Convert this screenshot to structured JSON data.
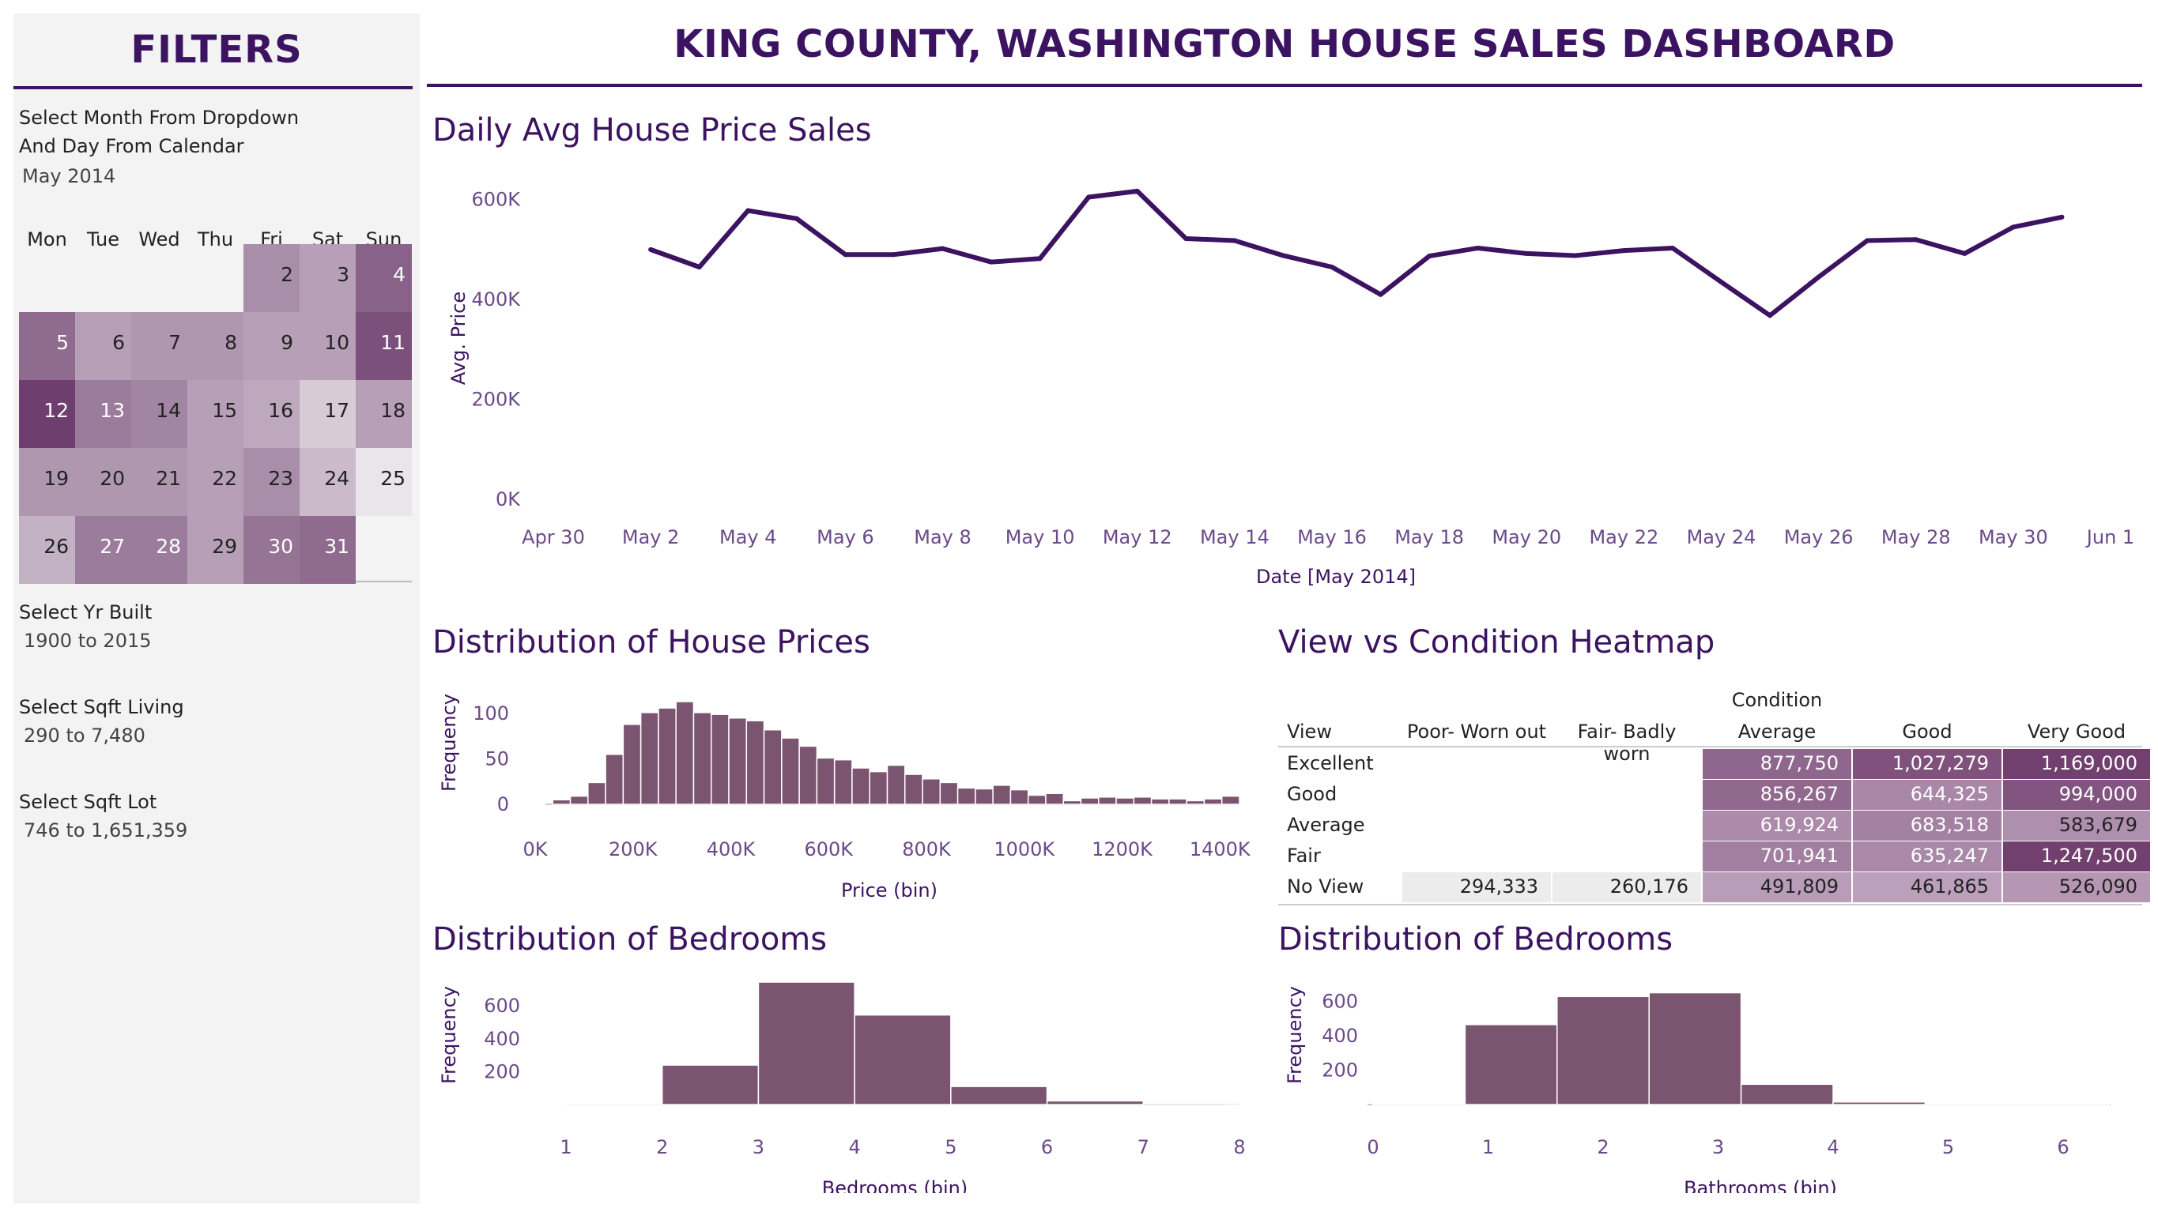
{
  "filters": {
    "title": "FILTERS",
    "month_label_1": "Select Month From Dropdown",
    "month_label_2": "And Day From Calendar",
    "month_value": "May 2014",
    "weekdays": [
      "Mon",
      "Tue",
      "Wed",
      "Thu",
      "Fri",
      "Sat",
      "Sun"
    ],
    "calendar": [
      {
        "day": "2",
        "level": 0.55
      },
      {
        "day": "3",
        "level": 0.45
      },
      {
        "day": "4",
        "level": 0.8
      },
      {
        "day": "5",
        "level": 0.75
      },
      {
        "day": "6",
        "level": 0.45
      },
      {
        "day": "7",
        "level": 0.5
      },
      {
        "day": "8",
        "level": 0.5
      },
      {
        "day": "9",
        "level": 0.45
      },
      {
        "day": "10",
        "level": 0.45
      },
      {
        "day": "11",
        "level": 0.9
      },
      {
        "day": "12",
        "level": 1.0
      },
      {
        "day": "13",
        "level": 0.65
      },
      {
        "day": "14",
        "level": 0.6
      },
      {
        "day": "15",
        "level": 0.45
      },
      {
        "day": "16",
        "level": 0.4
      },
      {
        "day": "17",
        "level": 0.2
      },
      {
        "day": "18",
        "level": 0.45
      },
      {
        "day": "19",
        "level": 0.5
      },
      {
        "day": "20",
        "level": 0.5
      },
      {
        "day": "21",
        "level": 0.5
      },
      {
        "day": "22",
        "level": 0.45
      },
      {
        "day": "23",
        "level": 0.55
      },
      {
        "day": "24",
        "level": 0.3
      },
      {
        "day": "25",
        "level": 0.05
      },
      {
        "day": "26",
        "level": 0.35
      },
      {
        "day": "27",
        "level": 0.65
      },
      {
        "day": "28",
        "level": 0.65
      },
      {
        "day": "29",
        "level": 0.45
      },
      {
        "day": "30",
        "level": 0.7
      },
      {
        "day": "31",
        "level": 0.75
      }
    ],
    "yr_label": "Select Yr Built",
    "yr_value": "1900 to 2015",
    "sqft_living_label": "Select Sqft Living",
    "sqft_living_value": "290 to 7,480",
    "sqft_lot_label": "Select Sqft Lot",
    "sqft_lot_value": "746 to 1,651,359"
  },
  "header": {
    "title": "KING COUNTY, WASHINGTON HOUSE SALES DASHBOARD"
  },
  "colors": {
    "primary": "#3c1361",
    "bar": "#7b5570",
    "bar_edge": "#ffffff",
    "axis_text": "#6b4a8a"
  },
  "chart_data": [
    {
      "type": "line",
      "title": "Daily Avg House Price Sales",
      "xlabel": "Date [May 2014]",
      "ylabel": "Avg. Price",
      "x_ticks": [
        "Apr 30",
        "May 2",
        "May 4",
        "May 6",
        "May 8",
        "May 10",
        "May 12",
        "May 14",
        "May 16",
        "May 18",
        "May 20",
        "May 22",
        "May 24",
        "May 26",
        "May 28",
        "May 30",
        "Jun 1"
      ],
      "y_ticks": [
        "0K",
        "200K",
        "400K",
        "600K"
      ],
      "ylim": [
        0,
        620000
      ],
      "x": [
        2,
        3,
        4,
        5,
        6,
        7,
        8,
        9,
        10,
        11,
        12,
        13,
        14,
        15,
        16,
        17,
        18,
        19,
        20,
        21,
        22,
        23,
        24,
        25,
        26,
        27,
        28,
        29,
        30,
        31
      ],
      "values": [
        500000,
        465000,
        578000,
        562000,
        490000,
        490000,
        502000,
        475000,
        482000,
        605000,
        617000,
        522000,
        518000,
        488000,
        465000,
        410000,
        487000,
        503000,
        492000,
        488000,
        498000,
        503000,
        435000,
        368000,
        445000,
        518000,
        520000,
        492000,
        545000,
        565000
      ]
    },
    {
      "type": "bar",
      "title": "Distribution of House Prices",
      "xlabel": "Price (bin)",
      "ylabel": "Frequency",
      "x_ticks": [
        "0K",
        "200K",
        "400K",
        "600K",
        "800K",
        "1000K",
        "1200K",
        "1400K"
      ],
      "y_ticks": [
        "0",
        "50",
        "100"
      ],
      "ylim": [
        0,
        120
      ],
      "bin_width": 36000,
      "bin_starts": [
        36000,
        72000,
        108000,
        144000,
        180000,
        216000,
        252000,
        288000,
        324000,
        360000,
        396000,
        432000,
        468000,
        504000,
        540000,
        576000,
        612000,
        648000,
        684000,
        720000,
        756000,
        792000,
        828000,
        864000,
        900000,
        936000,
        972000,
        1008000,
        1044000,
        1080000,
        1116000,
        1152000,
        1188000,
        1224000,
        1260000,
        1296000,
        1332000,
        1368000,
        1404000
      ],
      "values": [
        5,
        9,
        24,
        55,
        88,
        101,
        106,
        113,
        101,
        99,
        95,
        92,
        82,
        73,
        64,
        51,
        49,
        40,
        36,
        43,
        33,
        28,
        24,
        18,
        17,
        21,
        16,
        10,
        12,
        4,
        7,
        8,
        7,
        8,
        6,
        6,
        4,
        6,
        9
      ]
    },
    {
      "type": "heatmap",
      "title": "View vs Condition Heatmap",
      "column_group": "Condition",
      "row_header": "View",
      "columns": [
        "Poor- Worn out",
        "Fair- Badly worn",
        "Average",
        "Good",
        "Very Good"
      ],
      "rows": [
        "Excellent",
        "Good",
        "Average",
        "Fair",
        "No View"
      ],
      "cells": [
        [
          "",
          "",
          "877,750",
          "1,027,279",
          "1,169,000"
        ],
        [
          "",
          "",
          "856,267",
          "644,325",
          "994,000"
        ],
        [
          "",
          "",
          "619,924",
          "683,518",
          "583,679"
        ],
        [
          "",
          "",
          "701,941",
          "635,247",
          "1,247,500"
        ],
        [
          "294,333",
          "260,176",
          "491,809",
          "461,865",
          "526,090"
        ]
      ],
      "values": [
        [
          null,
          null,
          877750,
          1027279,
          1169000
        ],
        [
          null,
          null,
          856267,
          644325,
          994000
        ],
        [
          null,
          null,
          619924,
          683518,
          583679
        ],
        [
          null,
          null,
          701941,
          635247,
          1247500
        ],
        [
          294333,
          260176,
          491809,
          461865,
          526090
        ]
      ]
    },
    {
      "type": "bar",
      "title": "Distribution of Bedrooms",
      "xlabel": "Bedrooms (bin)",
      "ylabel": "Frequency",
      "x_ticks": [
        "1",
        "2",
        "3",
        "4",
        "5",
        "6",
        "7",
        "8"
      ],
      "y_ticks": [
        "200",
        "400",
        "600"
      ],
      "ylim": [
        0,
        750
      ],
      "bin_starts": [
        1,
        2,
        3,
        4,
        5,
        6,
        7
      ],
      "bin_width": 1,
      "values": [
        5,
        240,
        745,
        545,
        110,
        22,
        8
      ]
    },
    {
      "type": "bar",
      "title": "Distribution of Bedrooms",
      "xlabel": "Bathrooms (bin)",
      "ylabel": "Frequency",
      "x_ticks": [
        "0",
        "1",
        "2",
        "3",
        "4",
        "5",
        "6"
      ],
      "y_ticks": [
        "200",
        "400",
        "600"
      ],
      "ylim": [
        0,
        680
      ],
      "bin_starts": [
        0,
        0.8,
        1.6,
        2.4,
        3.2,
        4.0,
        4.8,
        5.6
      ],
      "bin_width": 0.8,
      "values": [
        3,
        465,
        628,
        650,
        118,
        15,
        4,
        2
      ]
    }
  ]
}
